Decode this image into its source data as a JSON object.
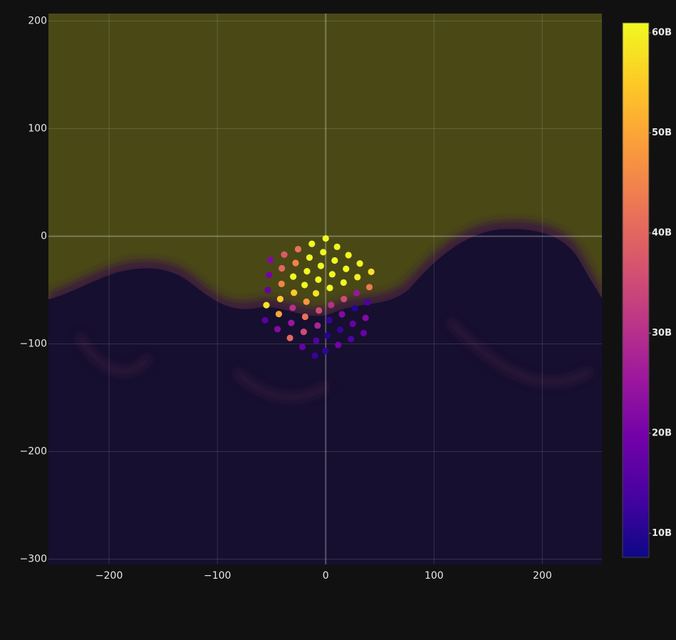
{
  "chart_data": {
    "type": "scatter",
    "x": [
      0,
      10.5,
      21,
      31.5,
      42,
      -12.8,
      -2.3,
      8.3,
      18.8,
      29.3,
      -25.5,
      -15,
      -4.5,
      6,
      16.5,
      -38.3,
      -27.8,
      -17.3,
      -6.8,
      3.8,
      -51,
      -40.5,
      -30,
      -19.5,
      -9,
      -52.3,
      -40.8,
      -29.3,
      -17.8,
      -6.3,
      -53.5,
      -42,
      -30.5,
      -19,
      -7.5,
      -54.8,
      -43.3,
      -31.8,
      -20.3,
      -8.8,
      -56,
      -44.5,
      -33,
      -21.5,
      -10,
      5,
      16.8,
      28.5,
      40.3,
      3.3,
      15,
      26.8,
      38.5,
      1.5,
      13.3,
      25,
      36.8,
      -0.3,
      11.5,
      23.3,
      35
    ],
    "values": [
      -2,
      -9.8,
      -17.5,
      -25.3,
      -33,
      -7,
      -14.8,
      -22.5,
      -30.3,
      -38,
      -12,
      -19.8,
      -27.5,
      -35.3,
      -43,
      -17,
      -24.8,
      -32.5,
      -40.3,
      -48,
      -22,
      -29.8,
      -37.5,
      -45.3,
      -53,
      -36,
      -44.3,
      -52.5,
      -60.8,
      -69,
      -50,
      -58.3,
      -66.5,
      -74.8,
      -83,
      -64,
      -72.3,
      -80.5,
      -88.8,
      -97,
      -78,
      -86.3,
      -94.5,
      -102.8,
      -111,
      -63.8,
      -58.3,
      -52.8,
      -47.3,
      -78,
      -72.5,
      -67,
      -61.5,
      -92.3,
      -86.8,
      -81.3,
      -75.8,
      -106.5,
      -101,
      -95.5,
      -90
    ],
    "color_values": [
      61000000000,
      61000000000,
      61000000000,
      61000000000,
      58000000000,
      61000000000,
      61000000000,
      61000000000,
      61000000000,
      60000000000,
      42000000000,
      61000000000,
      61000000000,
      61000000000,
      61000000000,
      38000000000,
      45000000000,
      61000000000,
      61000000000,
      61000000000,
      22000000000,
      40000000000,
      61000000000,
      61000000000,
      58000000000,
      20000000000,
      45000000000,
      55000000000,
      48000000000,
      35000000000,
      18000000000,
      55000000000,
      30000000000,
      42000000000,
      28000000000,
      58000000000,
      50000000000,
      25000000000,
      35000000000,
      15000000000,
      16000000000,
      22000000000,
      40000000000,
      18000000000,
      12000000000,
      30000000000,
      35000000000,
      25000000000,
      43000000000,
      12000000000,
      22000000000,
      10000000000,
      14000000000,
      10000000000,
      12000000000,
      18000000000,
      22000000000,
      11000000000,
      20000000000,
      15000000000,
      18000000000
    ],
    "colorscale": [
      "#0d0887",
      "#46039f",
      "#7201a8",
      "#9c179e",
      "#bd3786",
      "#d8576b",
      "#ed7953",
      "#fb9f3a",
      "#fdca26",
      "#f0f921"
    ],
    "clim": [
      7600000000,
      61000000000
    ],
    "cticks": [
      {
        "value": 10000000000,
        "label": "10B"
      },
      {
        "value": 20000000000,
        "label": "20B"
      },
      {
        "value": 30000000000,
        "label": "30B"
      },
      {
        "value": 40000000000,
        "label": "40B"
      },
      {
        "value": 50000000000,
        "label": "50B"
      },
      {
        "value": 60000000000,
        "label": "60B"
      }
    ],
    "xlim": [
      -256,
      255
    ],
    "ylim": [
      -305,
      207
    ],
    "xticks": [
      {
        "value": -200,
        "label": "−200"
      },
      {
        "value": -100,
        "label": "−100"
      },
      0,
      100,
      200
    ],
    "yticks": [
      {
        "value": -300,
        "label": "−300"
      },
      {
        "value": -200,
        "label": "−200"
      },
      {
        "value": -100,
        "label": "−100"
      },
      0,
      100,
      200
    ],
    "grid": true
  }
}
